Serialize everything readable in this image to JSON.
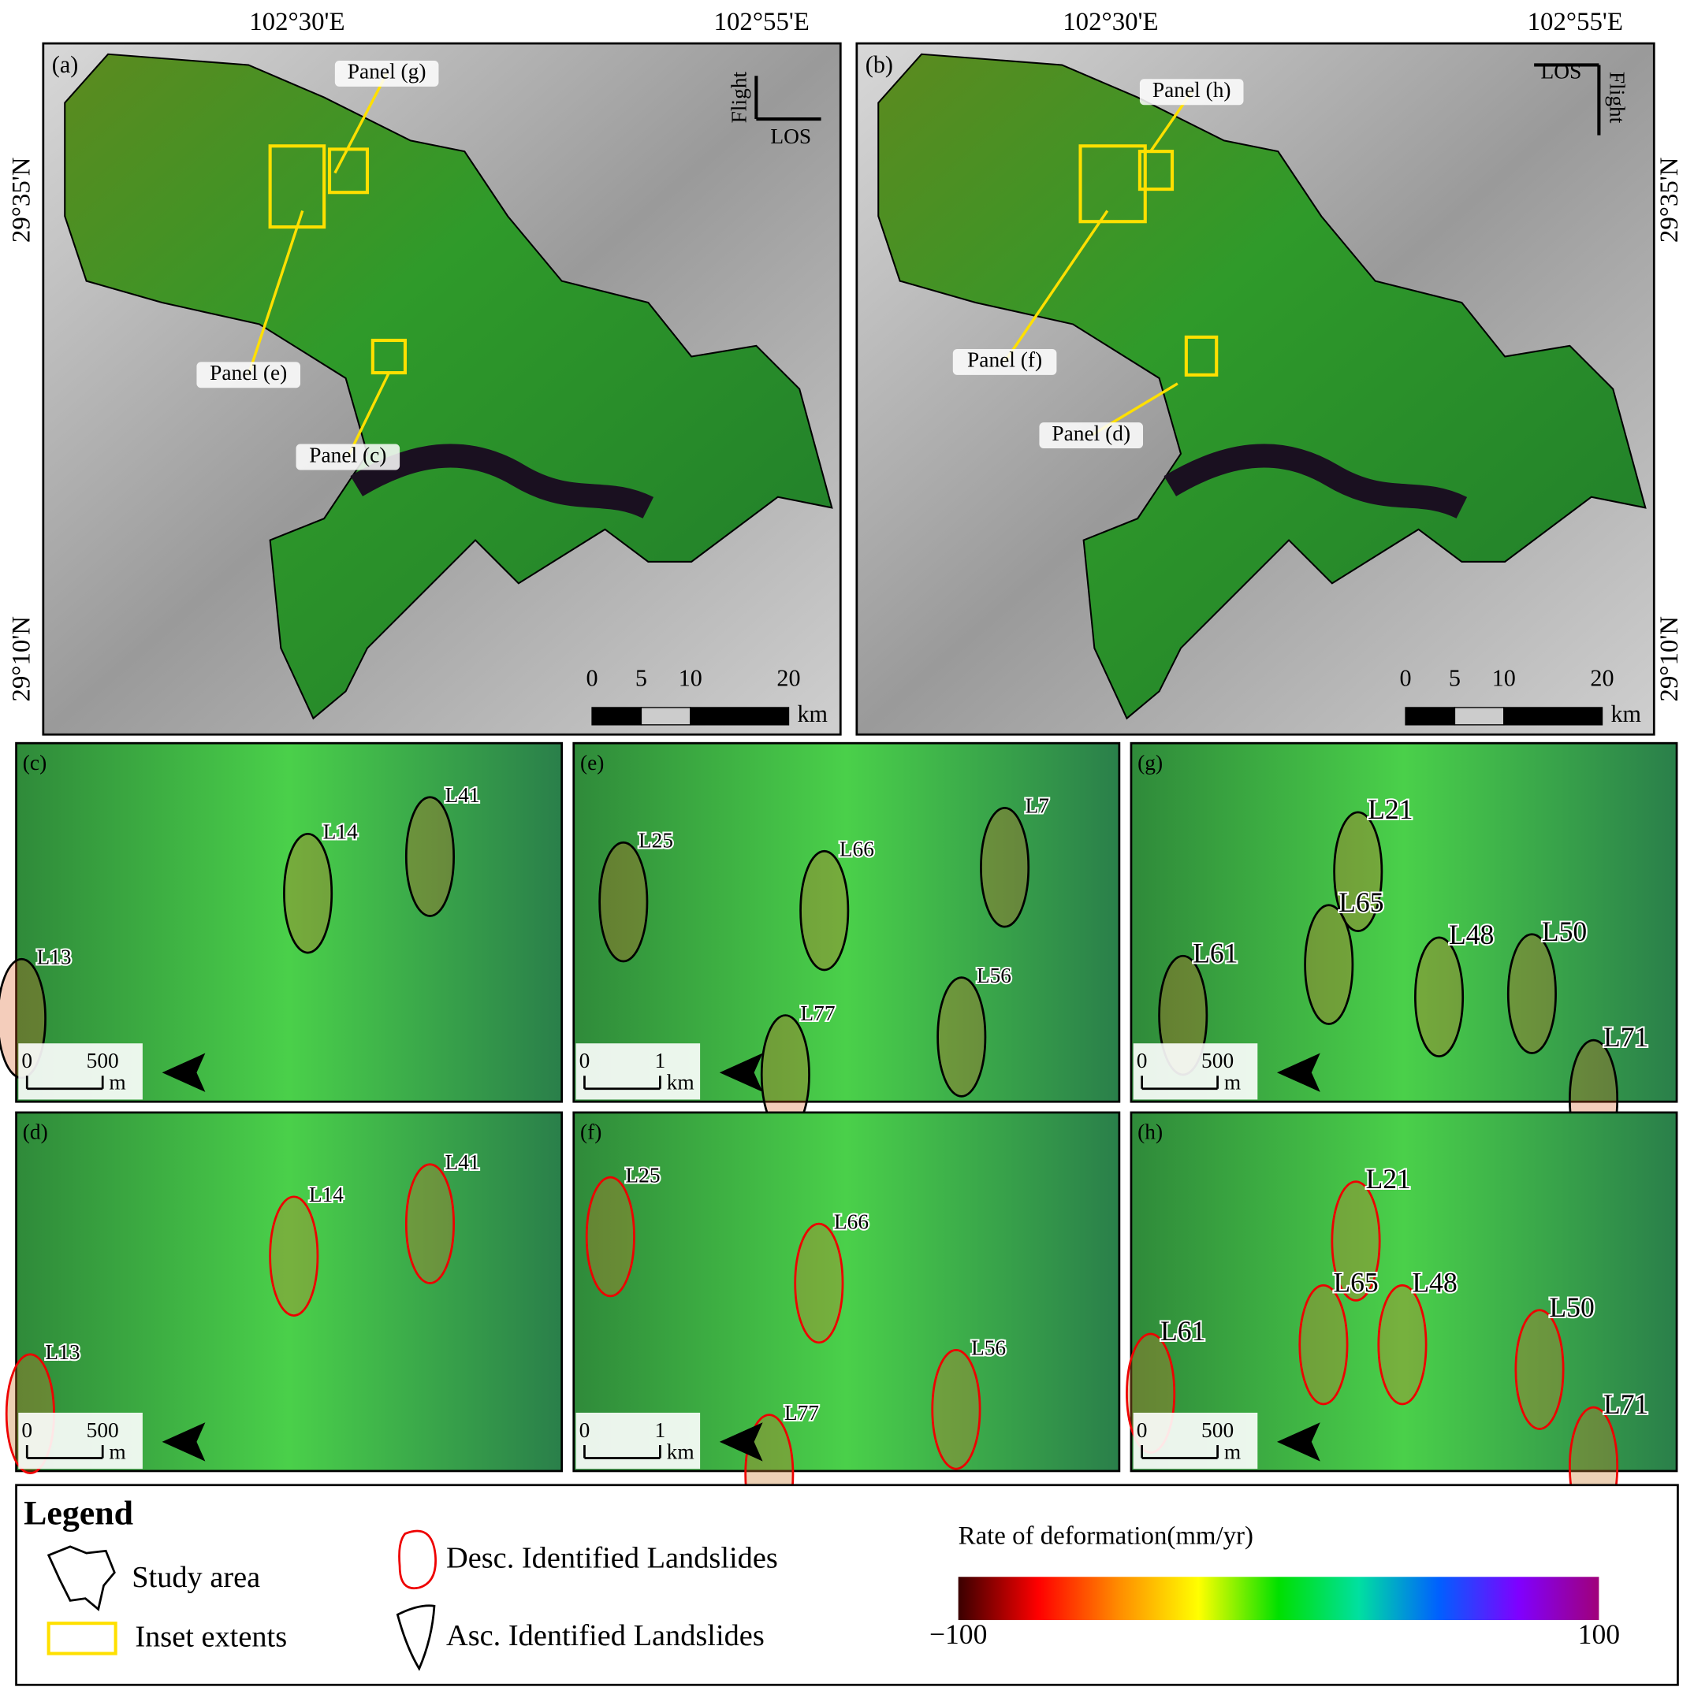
{
  "panels": [
    {
      "label": "(a)",
      "lon_labels": [
        "102°30'E",
        "102°55'E"
      ],
      "lat_labels": [
        "29°35'N",
        "29°10'N"
      ],
      "flight": "Flight",
      "los": "LOS",
      "callouts": [
        "Panel (g)",
        "Panel (e)",
        "Panel (c)"
      ],
      "scale": {
        "ticks": [
          0,
          5,
          10,
          20
        ],
        "unit": "km"
      }
    },
    {
      "label": "(b)",
      "lon_labels": [
        "102°30'E",
        "102°55'E"
      ],
      "lat_labels": [
        "29°35'N",
        "29°10'N"
      ],
      "flight": "Flight",
      "los": "LOS",
      "callouts": [
        "Panel (h)",
        "Panel (f)",
        "Panel (d)"
      ],
      "scale": {
        "ticks": [
          0,
          5,
          10,
          20
        ],
        "unit": "km"
      }
    }
  ],
  "insets": [
    {
      "label": "(c)",
      "landslides": [
        "L14",
        "L41",
        "L13"
      ],
      "scale": {
        "ticks": [
          0,
          500
        ],
        "unit": "m"
      }
    },
    {
      "label": "(e)",
      "landslides": [
        "L25",
        "L66",
        "L7",
        "L56",
        "L77"
      ],
      "scale": {
        "ticks": [
          0,
          1
        ],
        "unit": "km"
      }
    },
    {
      "label": "(g)",
      "landslides": [
        "L21",
        "L65",
        "L61",
        "L48",
        "L50",
        "L71"
      ],
      "scale": {
        "ticks": [
          0,
          500
        ],
        "unit": "m"
      }
    },
    {
      "label": "(d)",
      "landslides": [
        "L14",
        "L41",
        "L13"
      ],
      "scale": {
        "ticks": [
          0,
          500
        ],
        "unit": "m"
      }
    },
    {
      "label": "(f)",
      "landslides": [
        "L25",
        "L66",
        "L56",
        "L77"
      ],
      "scale": {
        "ticks": [
          0,
          1
        ],
        "unit": "km"
      }
    },
    {
      "label": "(h)",
      "landslides": [
        "L21",
        "L65",
        "L48",
        "L61",
        "L50",
        "L71"
      ],
      "scale": {
        "ticks": [
          0,
          500
        ],
        "unit": "m"
      }
    }
  ],
  "legend": {
    "title": "Legend",
    "items": [
      "Study area",
      "Inset extents",
      "Desc. Identified Landslides",
      "Asc. Identified Landslides"
    ],
    "colorbar": {
      "title": "Rate of deformation(mm/yr)",
      "min": {
        "value": -100,
        "label": "−100"
      },
      "max": 100,
      "colors": [
        "#3a0000",
        "#ff0000",
        "#ff8c00",
        "#ffff00",
        "#00e000",
        "#00e0a0",
        "#0060ff",
        "#8000ff",
        "#a0007a"
      ]
    }
  }
}
